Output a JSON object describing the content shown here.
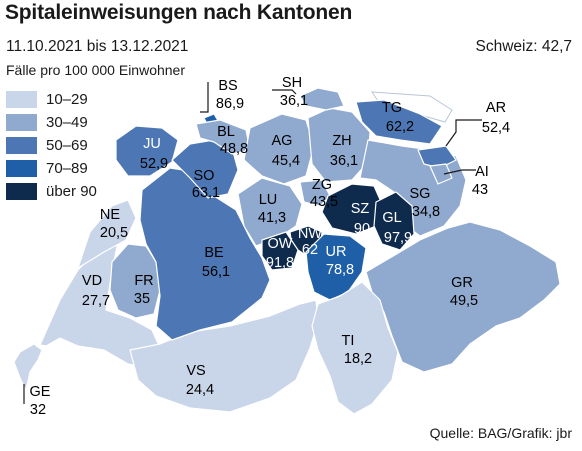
{
  "title": "Spitaleinweisungen nach Kantonen",
  "subtitle": "11.10.2021 bis 13.12.2021",
  "national": "Schweiz: 42,7",
  "legend_title": "Fälle pro 100 000 Einwohner",
  "legend": [
    {
      "label": "10–29",
      "color": "#c9d5e8"
    },
    {
      "label": "30–49",
      "color": "#8fa9cf"
    },
    {
      "label": "50–69",
      "color": "#4c77b4"
    },
    {
      "label": "70–89",
      "color": "#1e5fa8"
    },
    {
      "label": "über 90",
      "color": "#0e2a4d"
    }
  ],
  "source": "Quelle: BAG/Grafik: jbr",
  "cantons": [
    {
      "code": "GE",
      "value": "32"
    },
    {
      "code": "VD",
      "value": "27,7"
    },
    {
      "code": "VS",
      "value": "24,4"
    },
    {
      "code": "NE",
      "value": "20,5"
    },
    {
      "code": "FR",
      "value": "35"
    },
    {
      "code": "BE",
      "value": "56,1"
    },
    {
      "code": "JU",
      "value": "52,9"
    },
    {
      "code": "SO",
      "value": "63,1"
    },
    {
      "code": "BS",
      "value": "86,9"
    },
    {
      "code": "BL",
      "value": "48,8"
    },
    {
      "code": "AG",
      "value": "45,4"
    },
    {
      "code": "ZH",
      "value": "36,1"
    },
    {
      "code": "SH",
      "value": "36,1"
    },
    {
      "code": "TG",
      "value": "62,2"
    },
    {
      "code": "AR",
      "value": "52,4"
    },
    {
      "code": "AI",
      "value": "43"
    },
    {
      "code": "SG",
      "value": "34,8"
    },
    {
      "code": "GR",
      "value": "49,5"
    },
    {
      "code": "TI",
      "value": "18,2"
    },
    {
      "code": "LU",
      "value": "41,3"
    },
    {
      "code": "ZG",
      "value": "43,5"
    },
    {
      "code": "SZ",
      "value": "90"
    },
    {
      "code": "GL",
      "value": "97,9"
    },
    {
      "code": "NW",
      "value": "62"
    },
    {
      "code": "OW",
      "value": "91,8"
    },
    {
      "code": "UR",
      "value": "78,8"
    }
  ]
}
